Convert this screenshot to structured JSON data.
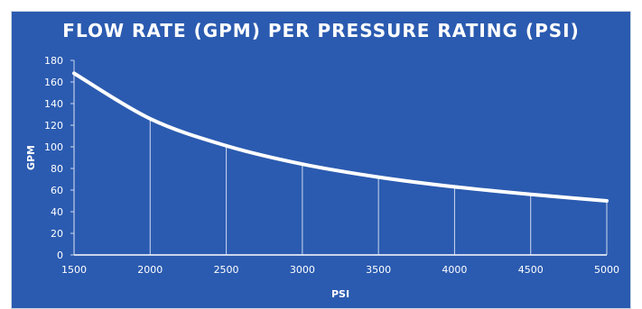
{
  "chart_data": {
    "type": "line",
    "title": "FLOW RATE (GPM) PER PRESSURE RATING (PSI)",
    "xlabel": "PSI",
    "ylabel": "GPM",
    "x": [
      1500,
      2000,
      2500,
      3000,
      3500,
      4000,
      4500,
      5000
    ],
    "series": [
      {
        "values": [
          168,
          126,
          101,
          84,
          72,
          63,
          56,
          50
        ]
      }
    ],
    "xlim": [
      1500,
      5000
    ],
    "ylim": [
      0,
      180
    ],
    "yticks": [
      0,
      20,
      40,
      60,
      80,
      100,
      120,
      140,
      160,
      180
    ],
    "drop_lines": true,
    "grid": false,
    "colors": {
      "background": "#2b5bb0",
      "line": "#ffffff",
      "text": "#ffffff"
    }
  }
}
